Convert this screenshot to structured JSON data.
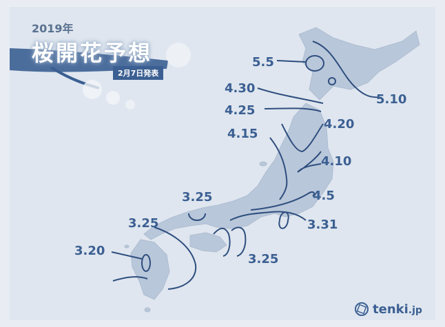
{
  "year": "2019年",
  "title": "桜開花予想",
  "announcement_date": "2月7日発表",
  "brand": {
    "name": "tenki",
    "suffix": ".jp"
  },
  "colors": {
    "background": "#dfe6ef",
    "land": "#b9c7da",
    "line": "#2e4e7e",
    "label": "#3b5f92",
    "branch": "#3b5f92"
  },
  "isolines": [
    {
      "label": "5.5"
    },
    {
      "label": "5.10"
    },
    {
      "label": "4.30"
    },
    {
      "label": "4.25"
    },
    {
      "label": "4.20"
    },
    {
      "label": "4.15"
    },
    {
      "label": "4.10"
    },
    {
      "label": "4.5"
    },
    {
      "label": "3.31"
    },
    {
      "label": "3.25"
    },
    {
      "label": "3.25"
    },
    {
      "label": "3.25"
    },
    {
      "label": "3.20"
    }
  ],
  "icons": {
    "logo": "tenki-logo-icon",
    "branch": "sakura-branch-icon"
  }
}
